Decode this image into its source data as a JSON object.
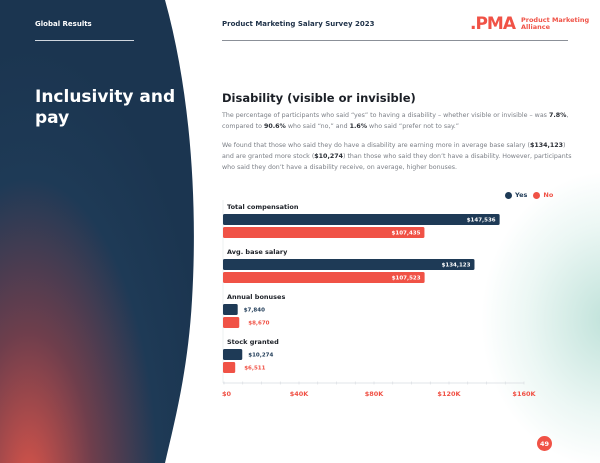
{
  "header": {
    "section_label": "Global Results",
    "doc_title": "Product Marketing Salary Survey 2023",
    "logo_mark": ".PMA",
    "logo_line1": "Product Marketing",
    "logo_line2": "Alliance"
  },
  "sidebar": {
    "title": "Inclusivity and pay"
  },
  "content": {
    "section_title": "Disability (visible or invisible)",
    "p1": [
      {
        "t": "The percentage of participants who said “yes” to having a disability – whether visible or invisible – was ",
        "b": false
      },
      {
        "t": "7.8%",
        "b": true
      },
      {
        "t": ", compared to ",
        "b": false
      },
      {
        "t": "90.6%",
        "b": true
      },
      {
        "t": " who said “no,” and ",
        "b": false
      },
      {
        "t": "1.6%",
        "b": true
      },
      {
        "t": " who said “prefer not to say.”",
        "b": false
      }
    ],
    "p2": [
      {
        "t": "We found that those who said they do have a disability are earning more in average base salary (",
        "b": false
      },
      {
        "t": "$134,123",
        "b": true
      },
      {
        "t": ") and are granted more stock (",
        "b": false
      },
      {
        "t": "$10,274",
        "b": true
      },
      {
        "t": ") than those who said they don’t have a disability. However, participants who said they don’t have a disability receive, on average, higher bonuses.",
        "b": false
      }
    ]
  },
  "colors": {
    "navy": "#1e3a56",
    "coral": "#f05246",
    "axis_label": "#f05246"
  },
  "page_number": "49",
  "chart_data": {
    "type": "bar",
    "orientation": "horizontal",
    "title": "",
    "xlabel": "",
    "ylabel": "",
    "categories": [
      "Total compensation",
      "Avg. base salary",
      "Annual bonuses",
      "Stock granted"
    ],
    "series": [
      {
        "name": "Yes",
        "color": "#1e3a56",
        "values": [
          147536,
          134123,
          7840,
          10274
        ],
        "labels": [
          "$147,536",
          "$134,123",
          "$7,840",
          "$10,274"
        ]
      },
      {
        "name": "No",
        "color": "#f05246",
        "values": [
          107435,
          107523,
          8670,
          6511
        ],
        "labels": [
          "$107,435",
          "$107,523",
          "$8,670",
          "$6,511"
        ]
      }
    ],
    "xlim": [
      0,
      160000
    ],
    "xticks": [
      0,
      40000,
      80000,
      120000,
      160000
    ],
    "xtick_labels": [
      "$0",
      "$40K",
      "$80K",
      "$120K",
      "$160K"
    ],
    "grid": false,
    "legend": {
      "position": "top-right",
      "entries": [
        "Yes",
        "No"
      ]
    }
  }
}
